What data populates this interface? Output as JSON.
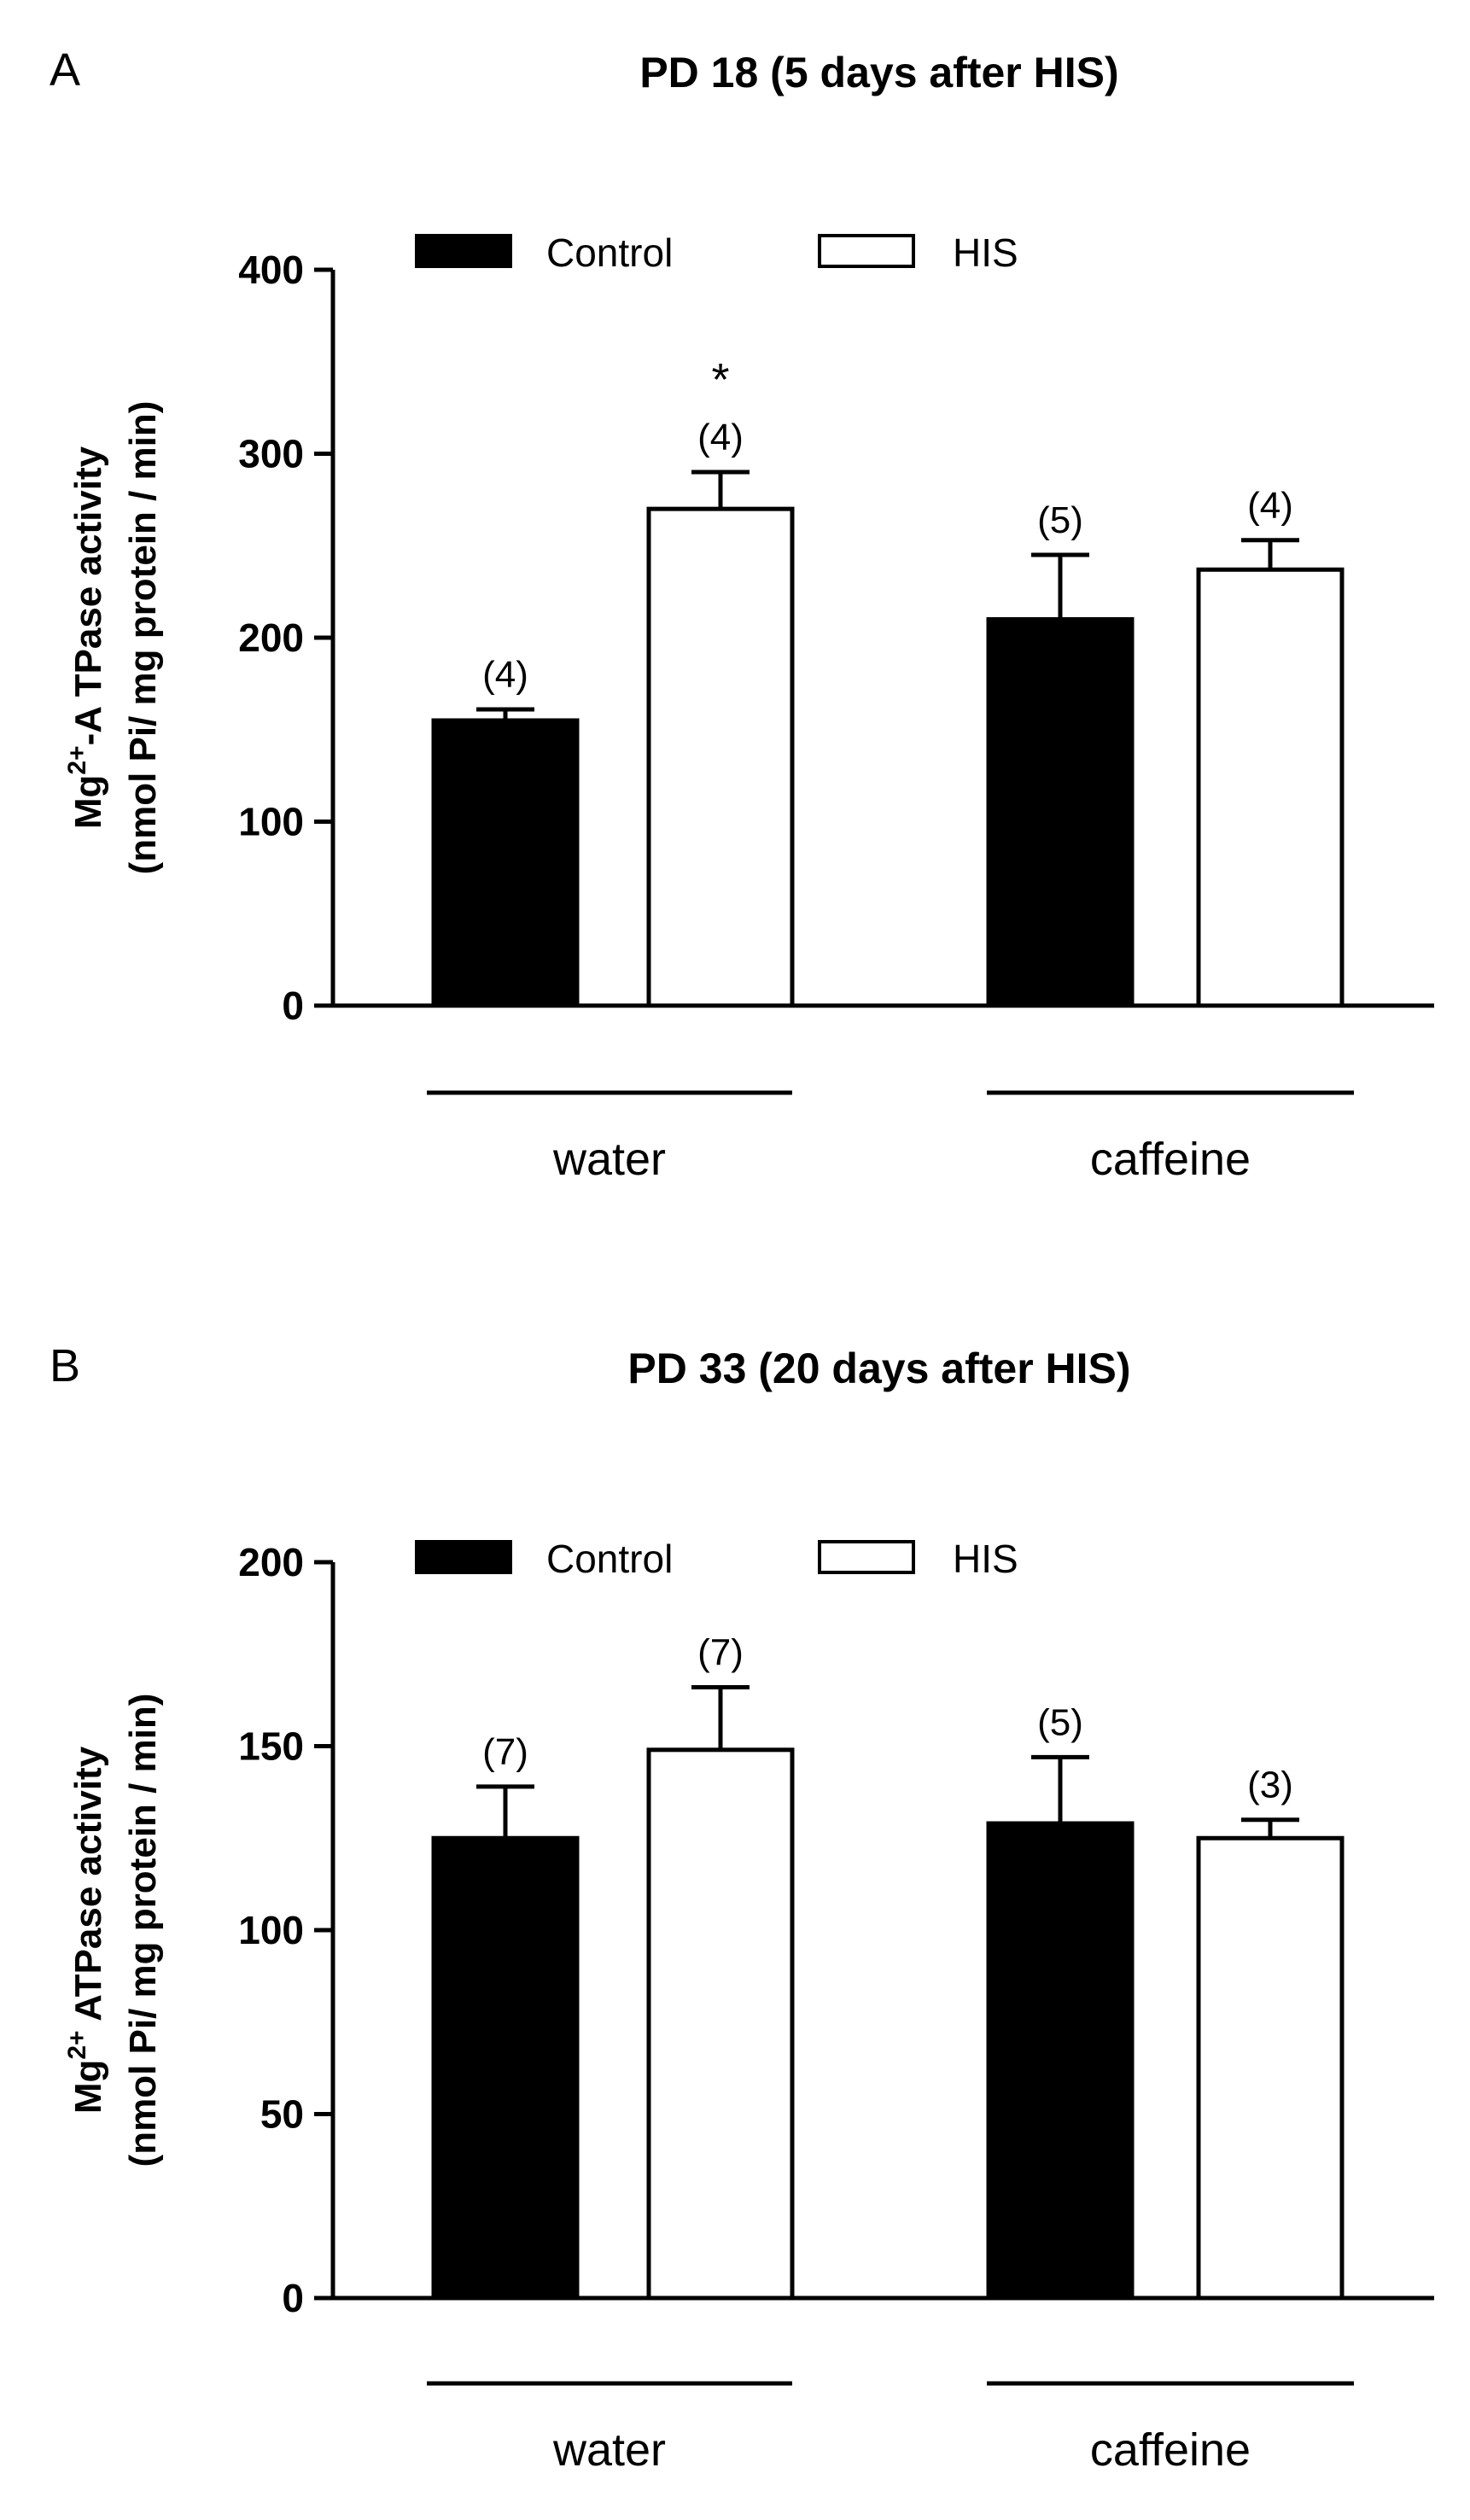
{
  "chart_data": [
    {
      "type": "bar",
      "panel": "A",
      "title": "PD 18 (5 days after HIS)",
      "ylabel_line1_prefix": "Mg",
      "ylabel_line1_sup": "2+",
      "ylabel_line1_suffix": "-A TPase activity",
      "ylabel_line2": "(nmol Pi/ mg protein / min)",
      "ylim": [
        0,
        400
      ],
      "yticks": [
        0,
        100,
        200,
        300,
        400
      ],
      "categories": [
        "water",
        "caffeine"
      ],
      "legend": [
        "Control",
        "HIS"
      ],
      "series": [
        {
          "name": "Control",
          "color": "#000000",
          "values": [
            155,
            210
          ],
          "errors": [
            6,
            35
          ],
          "n": [
            "(4)",
            "(5)"
          ],
          "sig": [
            "",
            ""
          ]
        },
        {
          "name": "HIS",
          "color": "#ffffff",
          "values": [
            270,
            237
          ],
          "errors": [
            20,
            16
          ],
          "n": [
            "(4)",
            "(4)"
          ],
          "sig": [
            "*",
            ""
          ]
        }
      ]
    },
    {
      "type": "bar",
      "panel": "B",
      "title": "PD 33 (20 days after HIS)",
      "ylabel_line1_prefix": "Mg",
      "ylabel_line1_sup": "2+",
      "ylabel_line1_suffix": " ATPase activity",
      "ylabel_line2": "(nmol Pi/ mg protein / min)",
      "ylim": [
        0,
        200
      ],
      "yticks": [
        0,
        50,
        100,
        150,
        200
      ],
      "categories": [
        "water",
        "caffeine"
      ],
      "legend": [
        "Control",
        "HIS"
      ],
      "series": [
        {
          "name": "Control",
          "color": "#000000",
          "values": [
            125,
            129
          ],
          "errors": [
            14,
            18
          ],
          "n": [
            "(7)",
            "(5)"
          ],
          "sig": [
            "",
            ""
          ]
        },
        {
          "name": "HIS",
          "color": "#ffffff",
          "values": [
            149,
            125
          ],
          "errors": [
            17,
            5
          ],
          "n": [
            "(7)",
            "(3)"
          ],
          "sig": [
            "",
            ""
          ]
        }
      ]
    }
  ]
}
